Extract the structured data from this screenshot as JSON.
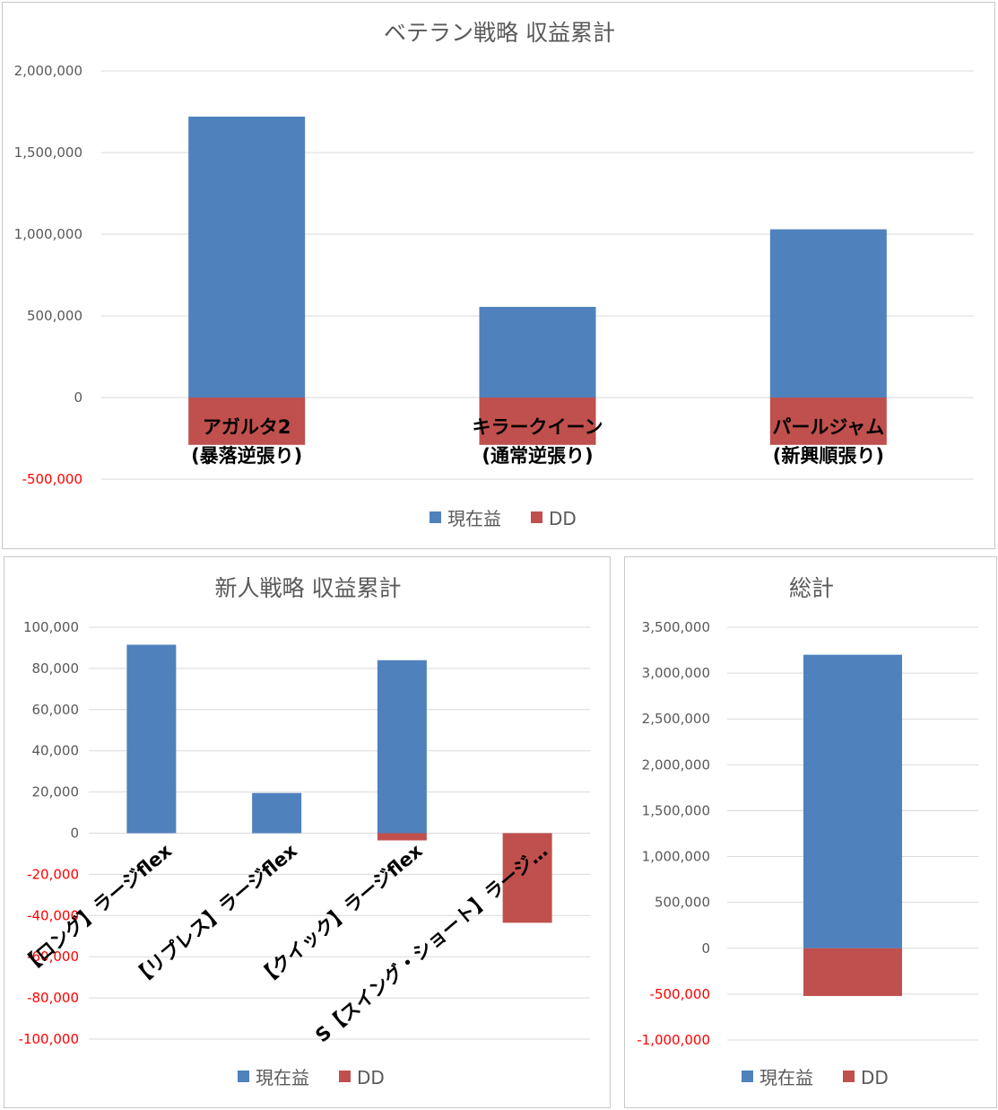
{
  "colors": {
    "current": "#4f81bd",
    "dd": "#c0504d",
    "grid": "#d9d9d9",
    "negative_tick": "#ff0000"
  },
  "chart_data": [
    {
      "type": "bar",
      "title": "ベテラン戦略 収益累計",
      "categories": [
        [
          "アガルタ2",
          "(暴落逆張り)"
        ],
        [
          "キラークイーン",
          "(通常逆張り)"
        ],
        [
          "パールジャム",
          "(新興順張り)"
        ]
      ],
      "series": [
        {
          "name": "現在益",
          "values": [
            1720000,
            555000,
            1030000
          ]
        },
        {
          "name": "DD",
          "values": [
            -290000,
            -290000,
            -290000
          ]
        }
      ],
      "yticks": [
        "2,000,000",
        "1,500,000",
        "1,000,000",
        "500,000",
        "0",
        "-500,000"
      ],
      "ylim": [
        -500000,
        2000000
      ],
      "grid": true,
      "legend": "bottom"
    },
    {
      "type": "bar",
      "title": "新人戦略 収益累計",
      "categories": [
        "【ロング】ラージflex",
        "【リプレス】ラージflex",
        "【クイック】ラージflex",
        "S【スイング・ショート】ラージ…"
      ],
      "series": [
        {
          "name": "現在益",
          "values": [
            91500,
            19500,
            84000,
            0
          ]
        },
        {
          "name": "DD",
          "values": [
            0,
            0,
            -3500,
            -43500
          ]
        }
      ],
      "yticks": [
        "100,000",
        "80,000",
        "60,000",
        "40,000",
        "20,000",
        "0",
        "-20,000",
        "-40,000",
        "-60,000",
        "-80,000",
        "-100,000"
      ],
      "ylim": [
        -100000,
        100000
      ],
      "grid": true,
      "legend": "bottom"
    },
    {
      "type": "bar",
      "title": "総計",
      "categories": [
        ""
      ],
      "series": [
        {
          "name": "現在益",
          "values": [
            3200000
          ]
        },
        {
          "name": "DD",
          "values": [
            -520000
          ]
        }
      ],
      "yticks": [
        "3,500,000",
        "3,000,000",
        "2,500,000",
        "2,000,000",
        "1,500,000",
        "1,000,000",
        "500,000",
        "0",
        "-500,000",
        "-1,000,000"
      ],
      "ylim": [
        -1000000,
        3500000
      ],
      "grid": true,
      "legend": "bottom"
    }
  ]
}
